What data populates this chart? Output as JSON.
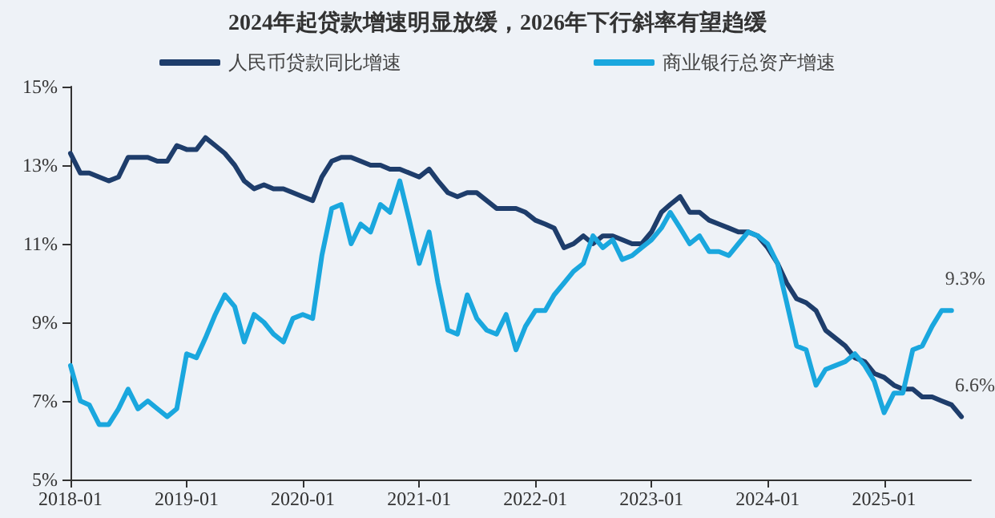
{
  "chart_data": {
    "type": "line",
    "title": "2024年起贷款增速明显放缓，2026年下行斜率有望趋缓",
    "x": [
      "2018-01",
      "2018-02",
      "2018-03",
      "2018-04",
      "2018-05",
      "2018-06",
      "2018-07",
      "2018-08",
      "2018-09",
      "2018-10",
      "2018-11",
      "2018-12",
      "2019-01",
      "2019-02",
      "2019-03",
      "2019-04",
      "2019-05",
      "2019-06",
      "2019-07",
      "2019-08",
      "2019-09",
      "2019-10",
      "2019-11",
      "2019-12",
      "2020-01",
      "2020-02",
      "2020-03",
      "2020-04",
      "2020-05",
      "2020-06",
      "2020-07",
      "2020-08",
      "2020-09",
      "2020-10",
      "2020-11",
      "2020-12",
      "2021-01",
      "2021-02",
      "2021-03",
      "2021-04",
      "2021-05",
      "2021-06",
      "2021-07",
      "2021-08",
      "2021-09",
      "2021-10",
      "2021-11",
      "2021-12",
      "2022-01",
      "2022-02",
      "2022-03",
      "2022-04",
      "2022-05",
      "2022-06",
      "2022-07",
      "2022-08",
      "2022-09",
      "2022-10",
      "2022-11",
      "2022-12",
      "2023-01",
      "2023-02",
      "2023-03",
      "2023-04",
      "2023-05",
      "2023-06",
      "2023-07",
      "2023-08",
      "2023-09",
      "2023-10",
      "2023-11",
      "2023-12",
      "2024-01",
      "2024-02",
      "2024-03",
      "2024-04",
      "2024-05",
      "2024-06",
      "2024-07",
      "2024-08",
      "2024-09",
      "2024-10",
      "2024-11",
      "2024-12",
      "2025-01",
      "2025-02",
      "2025-03",
      "2025-04",
      "2025-05",
      "2025-06",
      "2025-07",
      "2025-08",
      "2025-09"
    ],
    "series": [
      {
        "name": "人民币贷款同比增速",
        "color": "#1e3d6b",
        "values": [
          13.3,
          12.8,
          12.8,
          12.7,
          12.6,
          12.7,
          13.2,
          13.2,
          13.2,
          13.1,
          13.1,
          13.5,
          13.4,
          13.4,
          13.7,
          13.5,
          13.3,
          13.0,
          12.6,
          12.4,
          12.5,
          12.4,
          12.4,
          12.3,
          12.2,
          12.1,
          12.7,
          13.1,
          13.2,
          13.2,
          13.1,
          13.0,
          13.0,
          12.9,
          12.9,
          12.8,
          12.7,
          12.9,
          12.6,
          12.3,
          12.2,
          12.3,
          12.3,
          12.1,
          11.9,
          11.9,
          11.9,
          11.8,
          11.6,
          11.5,
          11.4,
          10.9,
          11.0,
          11.2,
          11.0,
          11.2,
          11.2,
          11.1,
          11.0,
          11.0,
          11.3,
          11.8,
          12.0,
          12.2,
          11.8,
          11.8,
          11.6,
          11.5,
          11.4,
          11.3,
          11.3,
          11.2,
          10.9,
          10.5,
          10.0,
          9.6,
          9.5,
          9.3,
          8.8,
          8.6,
          8.4,
          8.1,
          8.0,
          7.7,
          7.6,
          7.4,
          7.3,
          7.3,
          7.1,
          7.1,
          7.0,
          6.9,
          6.6
        ]
      },
      {
        "name": "商业银行总资产增速",
        "color": "#1aa7de",
        "values": [
          7.9,
          7.0,
          6.9,
          6.4,
          6.4,
          6.8,
          7.3,
          6.8,
          7.0,
          6.8,
          6.6,
          6.8,
          8.2,
          8.1,
          8.6,
          9.2,
          9.7,
          9.4,
          8.5,
          9.2,
          9.0,
          8.7,
          8.5,
          9.1,
          9.2,
          9.1,
          10.7,
          11.9,
          12.0,
          11.0,
          11.5,
          11.3,
          12.0,
          11.8,
          12.6,
          11.6,
          10.5,
          11.3,
          10.0,
          8.8,
          8.7,
          9.7,
          9.1,
          8.8,
          8.7,
          9.2,
          8.3,
          8.9,
          9.3,
          9.3,
          9.7,
          10.0,
          10.3,
          10.5,
          11.2,
          10.9,
          11.1,
          10.6,
          10.7,
          10.9,
          11.1,
          11.4,
          11.8,
          11.4,
          11.0,
          11.2,
          10.8,
          10.8,
          10.7,
          11.0,
          11.3,
          11.2,
          11.0,
          10.5,
          9.5,
          8.4,
          8.3,
          7.4,
          7.8,
          7.9,
          8.0,
          8.2,
          7.9,
          7.5,
          6.7,
          7.2,
          7.2,
          8.3,
          8.4,
          8.9,
          9.3,
          9.3,
          null
        ]
      }
    ],
    "xlim": [
      "2018-01",
      "2025-10"
    ],
    "xticks": [
      "2018-01",
      "2019-01",
      "2020-01",
      "2021-01",
      "2022-01",
      "2023-01",
      "2024-01",
      "2025-01"
    ],
    "ylim": [
      5,
      15
    ],
    "yticks": [
      {
        "value": 5,
        "label": "5%"
      },
      {
        "value": 7,
        "label": "7%"
      },
      {
        "value": 9,
        "label": "9%"
      },
      {
        "value": 11,
        "label": "11%"
      },
      {
        "value": 13,
        "label": "13%"
      },
      {
        "value": 15,
        "label": "15%"
      }
    ],
    "annotations": [
      {
        "text": "9.3%",
        "x": "2025-08",
        "y": 9.3
      },
      {
        "text": "6.6%",
        "x": "2025-09",
        "y": 6.6
      }
    ],
    "legend": "top",
    "grid": false,
    "marker": "none",
    "line_style": "solid"
  }
}
